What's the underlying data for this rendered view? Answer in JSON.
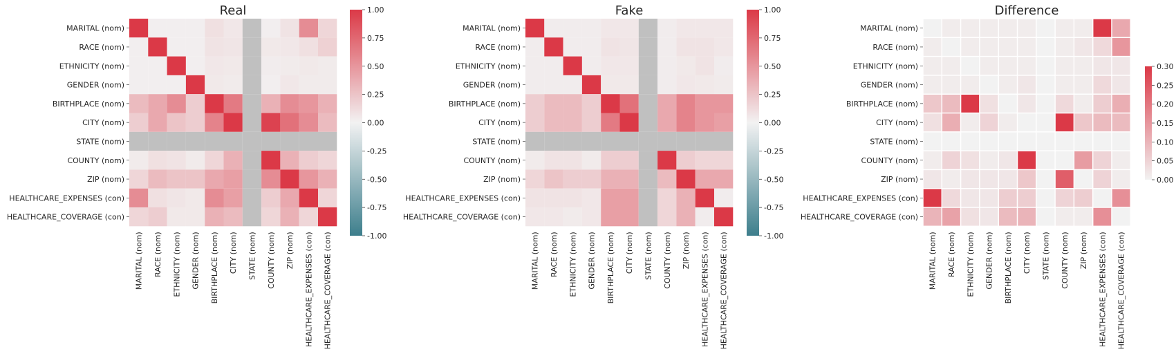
{
  "chart_data": [
    {
      "type": "heatmap",
      "title": "Real",
      "rows": [
        "MARITAL (nom)",
        "RACE (nom)",
        "ETHNICITY (nom)",
        "GENDER (nom)",
        "BIRTHPLACE (nom)",
        "CITY (nom)",
        "STATE (nom)",
        "COUNTY (nom)",
        "ZIP (nom)",
        "HEALTHCARE_EXPENSES (con)",
        "HEALTHCARE_COVERAGE (con)"
      ],
      "columns": [
        "MARITAL (nom)",
        "RACE (nom)",
        "ETHNICITY (nom)",
        "GENDER (nom)",
        "BIRTHPLACE (nom)",
        "CITY (nom)",
        "STATE (nom)",
        "COUNTY (nom)",
        "ZIP (nom)",
        "HEALTHCARE_EXPENSES (con)",
        "HEALTHCARE_COVERAGE (con)"
      ],
      "values": [
        [
          1.0,
          0.02,
          0.02,
          0.02,
          0.1,
          0.06,
          null,
          0.02,
          0.08,
          0.55,
          0.15
        ],
        [
          0.02,
          1.0,
          0.02,
          0.02,
          0.08,
          0.07,
          null,
          0.05,
          0.06,
          0.1,
          0.18
        ],
        [
          0.02,
          0.02,
          1.0,
          0.02,
          0.06,
          0.05,
          null,
          0.03,
          0.04,
          0.05,
          0.04
        ],
        [
          0.02,
          0.02,
          0.02,
          1.0,
          0.05,
          0.04,
          null,
          0.02,
          0.06,
          0.04,
          0.04
        ],
        [
          0.3,
          0.4,
          0.55,
          0.2,
          1.0,
          0.65,
          null,
          0.35,
          0.55,
          0.5,
          0.35
        ],
        [
          0.2,
          0.4,
          0.25,
          0.2,
          0.6,
          1.0,
          null,
          0.95,
          0.7,
          0.55,
          0.3
        ],
        [
          null,
          null,
          null,
          null,
          null,
          null,
          null,
          null,
          null,
          null,
          null
        ],
        [
          0.04,
          0.1,
          0.08,
          0.04,
          0.15,
          0.35,
          null,
          1.0,
          0.35,
          0.2,
          0.15
        ],
        [
          0.15,
          0.3,
          0.25,
          0.25,
          0.4,
          0.45,
          null,
          0.55,
          1.0,
          0.5,
          0.35
        ],
        [
          0.55,
          0.1,
          0.07,
          0.05,
          0.55,
          0.45,
          null,
          0.2,
          0.4,
          1.0,
          0.15
        ],
        [
          0.15,
          0.2,
          0.05,
          0.05,
          0.35,
          0.3,
          null,
          0.15,
          0.35,
          0.15,
          1.0
        ]
      ],
      "vmin": -1.0,
      "vmax": 1.0,
      "colorbar_ticks": [
        "1.00",
        "0.75",
        "0.50",
        "0.25",
        "0.00",
        "-0.25",
        "-0.50",
        "-0.75",
        "-1.00"
      ]
    },
    {
      "type": "heatmap",
      "title": "Fake",
      "rows": [
        "MARITAL (nom)",
        "RACE (nom)",
        "ETHNICITY (nom)",
        "GENDER (nom)",
        "BIRTHPLACE (nom)",
        "CITY (nom)",
        "STATE (nom)",
        "COUNTY (nom)",
        "ZIP (nom)",
        "HEALTHCARE_EXPENSES (con)",
        "HEALTHCARE_COVERAGE (con)"
      ],
      "columns": [
        "MARITAL (nom)",
        "RACE (nom)",
        "ETHNICITY (nom)",
        "GENDER (nom)",
        "BIRTHPLACE (nom)",
        "CITY (nom)",
        "STATE (nom)",
        "COUNTY (nom)",
        "ZIP (nom)",
        "HEALTHCARE_EXPENSES (con)",
        "HEALTHCARE_COVERAGE (con)"
      ],
      "values": [
        [
          1.0,
          0.03,
          0.03,
          0.03,
          0.06,
          0.06,
          null,
          0.03,
          0.06,
          0.06,
          0.06
        ],
        [
          0.03,
          1.0,
          0.03,
          0.03,
          0.08,
          0.07,
          null,
          0.03,
          0.08,
          0.08,
          0.06
        ],
        [
          0.03,
          0.03,
          1.0,
          0.03,
          0.06,
          0.06,
          null,
          0.03,
          0.05,
          0.08,
          0.03
        ],
        [
          0.03,
          0.03,
          0.03,
          1.0,
          0.05,
          0.05,
          null,
          0.03,
          0.06,
          0.05,
          0.04
        ],
        [
          0.2,
          0.3,
          0.3,
          0.2,
          1.0,
          0.7,
          null,
          0.4,
          0.6,
          0.5,
          0.5
        ],
        [
          0.2,
          0.3,
          0.3,
          0.2,
          0.65,
          1.0,
          null,
          0.4,
          0.6,
          0.5,
          0.45
        ],
        [
          null,
          null,
          null,
          null,
          null,
          null,
          null,
          null,
          null,
          null,
          null
        ],
        [
          0.04,
          0.08,
          0.08,
          0.04,
          0.2,
          0.2,
          null,
          1.0,
          0.2,
          0.15,
          0.15
        ],
        [
          0.15,
          0.25,
          0.2,
          0.2,
          0.35,
          0.35,
          null,
          0.3,
          1.0,
          0.4,
          0.4
        ],
        [
          0.08,
          0.08,
          0.08,
          0.06,
          0.45,
          0.45,
          null,
          0.15,
          0.35,
          1.0,
          0.03
        ],
        [
          0.06,
          0.06,
          0.04,
          0.06,
          0.45,
          0.45,
          null,
          0.15,
          0.35,
          0.03,
          1.0
        ]
      ],
      "vmin": -1.0,
      "vmax": 1.0,
      "colorbar_ticks": [
        "1.00",
        "0.75",
        "0.50",
        "0.25",
        "0.00",
        "-0.25",
        "-0.50",
        "-0.75",
        "-1.00"
      ]
    },
    {
      "type": "heatmap",
      "title": "Difference",
      "rows": [
        "MARITAL (nom)",
        "RACE (nom)",
        "ETHNICITY (nom)",
        "GENDER (nom)",
        "BIRTHPLACE (nom)",
        "CITY (nom)",
        "STATE (nom)",
        "COUNTY (nom)",
        "ZIP (nom)",
        "HEALTHCARE_EXPENSES (con)",
        "HEALTHCARE_COVERAGE (con)"
      ],
      "columns": [
        "MARITAL (nom)",
        "RACE (nom)",
        "ETHNICITY (nom)",
        "GENDER (nom)",
        "BIRTHPLACE (nom)",
        "CITY (nom)",
        "STATE (nom)",
        "COUNTY (nom)",
        "ZIP (nom)",
        "HEALTHCARE_EXPENSES (con)",
        "HEALTHCARE_COVERAGE (con)"
      ],
      "values": [
        [
          0.0,
          0.01,
          0.01,
          0.01,
          0.01,
          0.01,
          0.0,
          0.01,
          0.01,
          0.3,
          0.12
        ],
        [
          0.01,
          0.0,
          0.01,
          0.01,
          0.01,
          0.01,
          0.0,
          0.01,
          0.02,
          0.04,
          0.15
        ],
        [
          0.01,
          0.01,
          0.0,
          0.01,
          0.01,
          0.01,
          0.0,
          0.01,
          0.01,
          0.02,
          0.02
        ],
        [
          0.01,
          0.01,
          0.01,
          0.0,
          0.01,
          0.02,
          0.0,
          0.01,
          0.01,
          0.04,
          0.02
        ],
        [
          0.07,
          0.09,
          0.3,
          0.03,
          0.0,
          0.02,
          0.0,
          0.04,
          0.01,
          0.06,
          0.11
        ],
        [
          0.03,
          0.11,
          0.01,
          0.05,
          0.01,
          0.0,
          0.0,
          0.3,
          0.07,
          0.09,
          0.09
        ],
        [
          0.0,
          0.0,
          0.0,
          0.0,
          0.0,
          0.0,
          0.0,
          0.0,
          0.0,
          0.0,
          0.0
        ],
        [
          0.01,
          0.05,
          0.03,
          0.01,
          0.02,
          0.3,
          0.0,
          0.0,
          0.14,
          0.05,
          0.01
        ],
        [
          0.02,
          0.01,
          0.02,
          0.02,
          0.02,
          0.07,
          0.0,
          0.24,
          0.0,
          0.05,
          0.01
        ],
        [
          0.3,
          0.04,
          0.02,
          0.02,
          0.06,
          0.06,
          0.0,
          0.05,
          0.06,
          0.0,
          0.16
        ],
        [
          0.1,
          0.13,
          0.03,
          0.02,
          0.09,
          0.1,
          0.0,
          0.01,
          0.01,
          0.16,
          0.0
        ]
      ],
      "vmin": 0.0,
      "vmax": 0.3,
      "colorbar_ticks": [
        "0.30",
        "0.25",
        "0.20",
        "0.15",
        "0.10",
        "0.05",
        "0.00"
      ]
    }
  ]
}
